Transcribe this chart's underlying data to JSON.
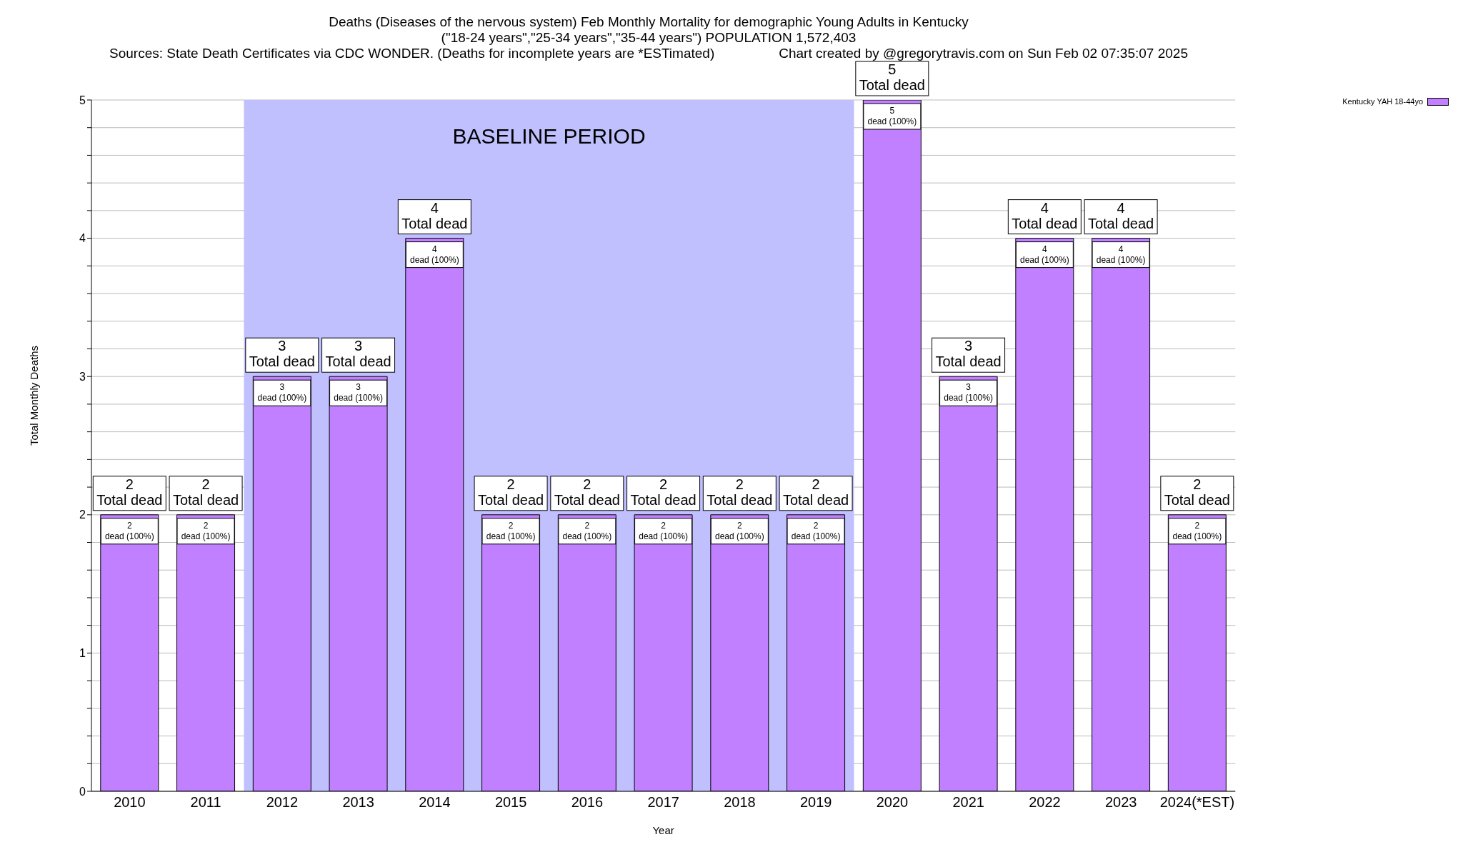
{
  "chart_data": {
    "type": "bar",
    "title": "Deaths (Diseases of the nervous system) Feb Monthly Mortality for demographic Young Adults in Kentucky",
    "subtitle": "(\"18-24 years\",\"25-34 years\",\"35-44 years\") POPULATION 1,572,403",
    "annotations": [
      "Sources: State Death Certificates via CDC WONDER. (Deaths for incomplete years are *ESTimated)",
      "Chart created by @gregorytravis.com on Sun Feb 02 07:35:07 2025"
    ],
    "xlabel": "Year",
    "ylabel": "Total Monthly Deaths",
    "categories": [
      "2010",
      "2011",
      "2012",
      "2013",
      "2014",
      "2015",
      "2016",
      "2017",
      "2018",
      "2019",
      "2020",
      "2021",
      "2022",
      "2023",
      "2024(*EST)"
    ],
    "series": [
      {
        "name": "Kentucky YAH 18-44yo",
        "color": "#c080ff",
        "values": [
          2,
          2,
          3,
          3,
          4,
          2,
          2,
          2,
          2,
          2,
          5,
          3,
          4,
          4,
          2
        ],
        "value_labels": [
          "2\ndead (100%)",
          "2\ndead (100%)",
          "3\ndead (100%)",
          "3\ndead (100%)",
          "4\ndead (100%)",
          "2\ndead (100%)",
          "2\ndead (100%)",
          "2\ndead (100%)",
          "2\ndead (100%)",
          "2\ndead (100%)",
          "5\ndead (100%)",
          "3\ndead (100%)",
          "4\ndead (100%)",
          "4\ndead (100%)",
          "2\ndead (100%)"
        ]
      }
    ],
    "totals": [
      "2\nTotal dead",
      "2\nTotal dead",
      "3\nTotal dead",
      "3\nTotal dead",
      "4\nTotal dead",
      "2\nTotal dead",
      "2\nTotal dead",
      "2\nTotal dead",
      "2\nTotal dead",
      "2\nTotal dead",
      "5\nTotal dead",
      "3\nTotal dead",
      "4\nTotal dead",
      "4\nTotal dead",
      "2\nTotal dead"
    ],
    "bands": [
      {
        "axis": "x",
        "from": "2012",
        "to": "2019",
        "label": "BASELINE PERIOD",
        "color": "#c0c0ff"
      }
    ],
    "ylim": [
      0,
      5
    ],
    "yticks": [
      0,
      {
        "value": 0.2,
        "label": null
      },
      {
        "value": 0.4,
        "label": null
      },
      {
        "value": 0.6,
        "label": null
      },
      {
        "value": 0.8,
        "label": null
      },
      1,
      {
        "value": 1.2,
        "label": null
      },
      {
        "value": 1.4,
        "label": null
      },
      {
        "value": 1.6,
        "label": null
      },
      {
        "value": 1.8,
        "label": null
      },
      2,
      {
        "value": 2.2,
        "label": null
      },
      {
        "value": 2.4,
        "label": null
      },
      {
        "value": 2.6,
        "label": null
      },
      {
        "value": 2.8,
        "label": null
      },
      3,
      {
        "value": 3.2,
        "label": null
      },
      {
        "value": 3.4,
        "label": null
      },
      {
        "value": 3.6,
        "label": null
      },
      {
        "value": 3.8,
        "label": null
      },
      4,
      {
        "value": 4.2,
        "label": null
      },
      {
        "value": 4.4,
        "label": null
      },
      {
        "value": 4.6,
        "label": null
      },
      {
        "value": 4.8,
        "label": null
      },
      5
    ],
    "grid": "y",
    "legend": "top right"
  }
}
